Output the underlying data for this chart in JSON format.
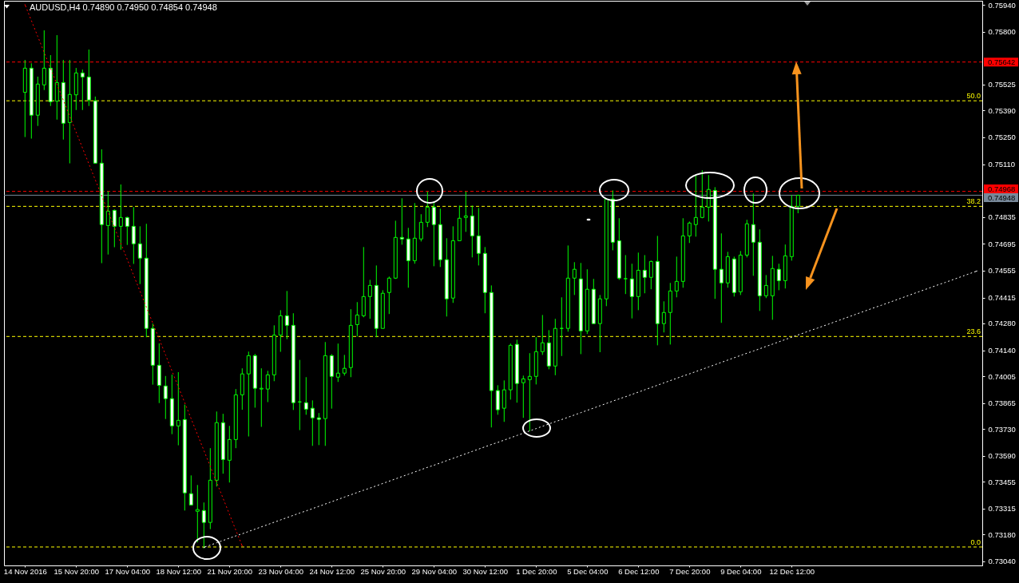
{
  "chart_data": {
    "type": "candlestick",
    "title": "AUDUSD,H4  0.74890 0.74950 0.74854 0.74948",
    "categories": [
      "14 Nov 2016",
      null,
      null,
      null,
      null,
      null,
      null,
      null,
      "15 Nov 20:00",
      null,
      null,
      null,
      null,
      null,
      null,
      null,
      "17 Nov 04:00",
      null,
      null,
      null,
      null,
      null,
      null,
      null,
      "18 Nov 12:00",
      null,
      null,
      null,
      null,
      null,
      null,
      null,
      "21 Nov 20:00",
      null,
      null,
      null,
      null,
      null,
      null,
      null,
      "23 Nov 04:00",
      null,
      null,
      null,
      null,
      null,
      null,
      null,
      "24 Nov 12:00",
      null,
      null,
      null,
      null,
      null,
      null,
      null,
      "25 Nov 20:00",
      null,
      null,
      null,
      null,
      null,
      null,
      null,
      "29 Nov 04:00",
      null,
      null,
      null,
      null,
      null,
      null,
      null,
      "30 Nov 12:00",
      null,
      null,
      null,
      null,
      null,
      null,
      null,
      "1 Dec 20:00",
      null,
      null,
      null,
      null,
      null,
      null,
      null,
      "5 Dec 04:00",
      null,
      null,
      null,
      null,
      null,
      null,
      null,
      "6 Dec 12:00",
      null,
      null,
      null,
      null,
      null,
      null,
      null,
      "7 Dec 20:00",
      null,
      null,
      null,
      null,
      null,
      null,
      null,
      "9 Dec 04:00",
      null,
      null,
      null,
      null,
      null,
      null,
      null,
      "12 Dec 12:00",
      null,
      null,
      null,
      null,
      null,
      null,
      null,
      null,
      null,
      null,
      null,
      null,
      null,
      null,
      null,
      null,
      null,
      null,
      null,
      null,
      null,
      null,
      null,
      null,
      null,
      null,
      null,
      null,
      null
    ],
    "ohlc": [
      [
        0.75484,
        0.75653,
        0.75251,
        0.7561
      ],
      [
        0.7561,
        0.75635,
        0.75243,
        0.75365
      ],
      [
        0.75365,
        0.75566,
        0.75309,
        0.75527
      ],
      [
        0.75523,
        0.75807,
        0.75496,
        0.7561
      ],
      [
        0.7561,
        0.75678,
        0.75413,
        0.75435
      ],
      [
        0.75438,
        0.75782,
        0.75342,
        0.75535
      ],
      [
        0.75535,
        0.75653,
        0.75238,
        0.75323
      ],
      [
        0.75327,
        0.75653,
        0.75114,
        0.75473
      ],
      [
        0.75471,
        0.75611,
        0.75392,
        0.75585
      ],
      [
        0.75585,
        0.75603,
        0.75392,
        0.75564
      ],
      [
        0.75564,
        0.75707,
        0.75413,
        0.75444
      ],
      [
        0.7544,
        0.75462,
        0.75115,
        0.75115
      ],
      [
        0.75115,
        0.75187,
        0.74594,
        0.74795
      ],
      [
        0.7479,
        0.74969,
        0.74639,
        0.74865
      ],
      [
        0.74869,
        0.74874,
        0.74677,
        0.74786
      ],
      [
        0.74786,
        0.75004,
        0.74664,
        0.74832
      ],
      [
        0.74832,
        0.74836,
        0.74689,
        0.74786
      ],
      [
        0.74786,
        0.74886,
        0.7459,
        0.74695
      ],
      [
        0.74695,
        0.74786,
        0.74485,
        0.7462
      ],
      [
        0.7462,
        0.74799,
        0.74208,
        0.74254
      ],
      [
        0.74254,
        0.74279,
        0.73961,
        0.74062
      ],
      [
        0.74062,
        0.74176,
        0.73865,
        0.73957
      ],
      [
        0.73954,
        0.74006,
        0.73782,
        0.73888
      ],
      [
        0.73888,
        0.74013,
        0.73703,
        0.73746
      ],
      [
        0.73746,
        0.74026,
        0.73645,
        0.73775
      ],
      [
        0.73779,
        0.73857,
        0.73305,
        0.73397
      ],
      [
        0.73393,
        0.73488,
        0.73334,
        0.73334
      ],
      [
        0.73301,
        0.73438,
        0.73139,
        0.7331
      ],
      [
        0.73305,
        0.73347,
        0.73108,
        0.73243
      ],
      [
        0.73243,
        0.7363,
        0.73208,
        0.73463
      ],
      [
        0.73463,
        0.73821,
        0.7343,
        0.73763
      ],
      [
        0.73763,
        0.73809,
        0.73497,
        0.73571
      ],
      [
        0.73567,
        0.73746,
        0.73451,
        0.73675
      ],
      [
        0.73675,
        0.73938,
        0.7363,
        0.73908
      ],
      [
        0.73908,
        0.74046,
        0.7383,
        0.74017
      ],
      [
        0.74017,
        0.74133,
        0.73691,
        0.74112
      ],
      [
        0.74112,
        0.74121,
        0.73841,
        0.73942
      ],
      [
        0.73938,
        0.74046,
        0.73741,
        0.73942
      ],
      [
        0.73938,
        0.74033,
        0.7387,
        0.74012
      ],
      [
        0.74012,
        0.7427,
        0.73979,
        0.74219
      ],
      [
        0.74219,
        0.74349,
        0.74132,
        0.7432
      ],
      [
        0.7432,
        0.74449,
        0.74198,
        0.7427
      ],
      [
        0.7427,
        0.74333,
        0.73829,
        0.73867
      ],
      [
        0.73871,
        0.7409,
        0.73724,
        0.73871
      ],
      [
        0.73867,
        0.74,
        0.73804,
        0.73833
      ],
      [
        0.73838,
        0.73879,
        0.73642,
        0.73788
      ],
      [
        0.73788,
        0.73813,
        0.73646,
        0.7378
      ],
      [
        0.73784,
        0.74183,
        0.73642,
        0.74112
      ],
      [
        0.74112,
        0.7412,
        0.73836,
        0.74004
      ],
      [
        0.74,
        0.74175,
        0.73975,
        0.74021
      ],
      [
        0.74021,
        0.74116,
        0.74008,
        0.74046
      ],
      [
        0.7405,
        0.74354,
        0.74,
        0.7427
      ],
      [
        0.74274,
        0.74391,
        0.74212,
        0.74324
      ],
      [
        0.7432,
        0.74678,
        0.74312,
        0.7442
      ],
      [
        0.7442,
        0.74507,
        0.74304,
        0.74478
      ],
      [
        0.74478,
        0.74582,
        0.74208,
        0.74254
      ],
      [
        0.74254,
        0.74453,
        0.74254,
        0.74437
      ],
      [
        0.74441,
        0.74524,
        0.74329,
        0.74516
      ],
      [
        0.74516,
        0.74815,
        0.74512,
        0.74728
      ],
      [
        0.74728,
        0.74932,
        0.7469,
        0.7472
      ],
      [
        0.7472,
        0.74778,
        0.74466,
        0.74607
      ],
      [
        0.74607,
        0.74907,
        0.74591,
        0.74724
      ],
      [
        0.7472,
        0.74849,
        0.74707,
        0.74807
      ],
      [
        0.74807,
        0.74967,
        0.74782,
        0.74886
      ],
      [
        0.74886,
        0.74911,
        0.74578,
        0.74795
      ],
      [
        0.74795,
        0.74878,
        0.74574,
        0.74612
      ],
      [
        0.74612,
        0.74724,
        0.74316,
        0.74408
      ],
      [
        0.74412,
        0.74786,
        0.74387,
        0.74711
      ],
      [
        0.74711,
        0.74894,
        0.74711,
        0.74828
      ],
      [
        0.74832,
        0.74967,
        0.74757,
        0.7484
      ],
      [
        0.7484,
        0.74894,
        0.74624,
        0.74736
      ],
      [
        0.74736,
        0.74882,
        0.74582,
        0.74645
      ],
      [
        0.74645,
        0.74678,
        0.74333,
        0.74441
      ],
      [
        0.74441,
        0.74478,
        0.73738,
        0.7393
      ],
      [
        0.7393,
        0.73958,
        0.73804,
        0.7383
      ],
      [
        0.73838,
        0.73983,
        0.73767,
        0.73934
      ],
      [
        0.73934,
        0.74175,
        0.73883,
        0.74166
      ],
      [
        0.74171,
        0.74195,
        0.73867,
        0.73967
      ],
      [
        0.73971,
        0.74008,
        0.73788,
        0.73991
      ],
      [
        0.73987,
        0.74125,
        0.73718,
        0.74004
      ],
      [
        0.74004,
        0.74208,
        0.73962,
        0.74133
      ],
      [
        0.74133,
        0.74324,
        0.74116,
        0.74179
      ],
      [
        0.74179,
        0.74245,
        0.74041,
        0.74058
      ],
      [
        0.74058,
        0.74304,
        0.7401,
        0.74254
      ],
      [
        0.74254,
        0.74416,
        0.7411,
        0.74254
      ],
      [
        0.74254,
        0.74686,
        0.74237,
        0.74516
      ],
      [
        0.74516,
        0.74599,
        0.74428,
        0.74562
      ],
      [
        0.74512,
        0.74595,
        0.7412,
        0.74241
      ],
      [
        0.74241,
        0.74562,
        0.74225,
        0.74458
      ],
      [
        0.74458,
        0.74512,
        0.74279,
        0.74279
      ],
      [
        0.74279,
        0.74428,
        0.7413,
        0.74408
      ],
      [
        0.74408,
        0.74928,
        0.7437,
        0.74928
      ],
      [
        0.74928,
        0.74973,
        0.74661,
        0.74703
      ],
      [
        0.74711,
        0.74828,
        0.74507,
        0.74516
      ],
      [
        0.74513,
        0.74636,
        0.74433,
        0.74513
      ],
      [
        0.74512,
        0.74591,
        0.74306,
        0.7442
      ],
      [
        0.7442,
        0.74649,
        0.74349,
        0.74557
      ],
      [
        0.74557,
        0.74636,
        0.74437,
        0.7452
      ],
      [
        0.7452,
        0.74607,
        0.74458,
        0.74603
      ],
      [
        0.74603,
        0.74736,
        0.74166,
        0.74279
      ],
      [
        0.74279,
        0.74395,
        0.74233,
        0.74337
      ],
      [
        0.74337,
        0.74491,
        0.7417,
        0.74449
      ],
      [
        0.74449,
        0.74628,
        0.74416,
        0.74499
      ],
      [
        0.74499,
        0.74828,
        0.74466,
        0.74736
      ],
      [
        0.74736,
        0.74811,
        0.74699,
        0.74803
      ],
      [
        0.74795,
        0.75053,
        0.74732,
        0.74832
      ],
      [
        0.74832,
        0.75078,
        0.74828,
        0.74886
      ],
      [
        0.74886,
        0.75053,
        0.74811,
        0.74978
      ],
      [
        0.74973,
        0.7499,
        0.74408,
        0.74562
      ],
      [
        0.74562,
        0.74749,
        0.74283,
        0.74491
      ],
      [
        0.74491,
        0.74653,
        0.74466,
        0.74628
      ],
      [
        0.74616,
        0.74628,
        0.7442,
        0.74441
      ],
      [
        0.74445,
        0.74657,
        0.74428,
        0.74636
      ],
      [
        0.74636,
        0.7482,
        0.74624,
        0.74799
      ],
      [
        0.74795,
        0.74957,
        0.74528,
        0.74703
      ],
      [
        0.74703,
        0.7477,
        0.74345,
        0.74424
      ],
      [
        0.74424,
        0.74532,
        0.74412,
        0.74478
      ],
      [
        0.74424,
        0.74632,
        0.74299,
        0.74566
      ],
      [
        0.74562,
        0.74591,
        0.74453,
        0.74503
      ],
      [
        0.74503,
        0.74691,
        0.74462,
        0.74632
      ],
      [
        0.74628,
        0.74949,
        0.74607,
        0.7489
      ],
      [
        0.7489,
        0.7495,
        0.74854,
        0.74948
      ],
      null,
      null,
      null,
      null,
      null,
      null,
      null,
      null,
      null,
      null,
      null,
      null,
      null,
      null,
      null,
      null,
      null,
      null,
      null,
      null,
      null,
      null,
      null,
      null,
      null,
      null,
      null,
      null
    ],
    "color": "#00ff00",
    "colors": [
      "#000000",
      "#ffffff",
      "#000000",
      "#000000",
      "#ffffff",
      "#000000",
      "#ffffff",
      "#000000",
      "#000000",
      "#ffffff",
      "#ffffff",
      "#ffffff",
      "#ffffff",
      "#000000",
      "#ffffff",
      "#000000",
      "#ffffff",
      "#ffffff",
      "#ffffff",
      "#ffffff",
      "#ffffff",
      "#ffffff",
      "#ffffff",
      "#ffffff",
      "#000000",
      "#ffffff",
      "#ffffff",
      "#000000",
      "#ffffff",
      "#000000",
      "#000000",
      "#ffffff",
      "#000000",
      "#000000",
      "#000000",
      "#000000",
      "#ffffff",
      "#000000",
      "#000000",
      "#000000",
      "#000000",
      "#ffffff",
      "#ffffff",
      "#00ff00",
      "#ffffff",
      "#ffffff",
      "#ffffff",
      "#000000",
      "#ffffff",
      "#000000",
      "#000000",
      "#000000",
      "#000000",
      "#000000",
      "#000000",
      "#ffffff",
      "#000000",
      "#000000",
      "#000000",
      "#ffffff",
      "#ffffff",
      "#000000",
      "#000000",
      "#000000",
      "#ffffff",
      "#ffffff",
      "#ffffff",
      "#000000",
      "#000000",
      "#000000",
      "#ffffff",
      "#ffffff",
      "#ffffff",
      "#ffffff",
      "#ffffff",
      "#000000",
      "#000000",
      "#ffffff",
      "#000000",
      "#000000",
      "#000000",
      "#000000",
      "#ffffff",
      "#000000",
      "#00ff00",
      "#000000",
      "#000000",
      "#ffffff",
      "#000000",
      "#ffffff",
      "#000000",
      "#000000",
      "#ffffff",
      "#ffffff",
      "#00ff00",
      "#ffffff",
      "#000000",
      "#ffffff",
      "#000000",
      "#ffffff",
      "#000000",
      "#000000",
      "#000000",
      "#000000",
      "#000000",
      "#000000",
      "#000000",
      "#000000",
      "#ffffff",
      "#ffffff",
      "#000000",
      "#ffffff",
      "#000000",
      "#000000",
      "#ffffff",
      "#ffffff",
      "#000000",
      "#000000",
      "#ffffff",
      "#000000",
      "#000000",
      "#000000",
      null,
      null,
      null,
      null,
      null,
      null,
      null,
      null,
      null,
      null,
      null,
      null,
      null,
      null,
      null,
      null,
      null,
      null,
      null,
      null,
      null,
      null,
      null,
      null,
      null,
      null,
      null,
      null
    ],
    "series": [
      {
        "type": "line",
        "color": "#ff0000",
        "line_style": "dotted",
        "values": [
          0.75941,
          0.75858,
          0.75775,
          0.75692,
          0.75609,
          0.75526,
          0.75443,
          0.7536,
          0.75277,
          0.75194,
          0.75111,
          0.75028,
          0.74946,
          0.74863,
          0.7478,
          0.74697,
          0.74614,
          0.74531,
          0.74448,
          0.74365,
          0.74282,
          0.74199,
          0.74116,
          0.74033,
          0.7395,
          0.73867,
          0.73784,
          0.73701,
          0.73618,
          0.73535,
          0.73452,
          0.73369,
          0.73286,
          0.73203,
          0.7312,
          null,
          null,
          null,
          null,
          null,
          null,
          null,
          null,
          null,
          null,
          null,
          null,
          null,
          null,
          null,
          null,
          null,
          null,
          null,
          null,
          null,
          null,
          null,
          null,
          null,
          null,
          null,
          null,
          null,
          null,
          null,
          null,
          null,
          null,
          null,
          null,
          null,
          null,
          null,
          null,
          null,
          null,
          null,
          null,
          null,
          null,
          null,
          null,
          null,
          null,
          null,
          null,
          null,
          null,
          null,
          null,
          null,
          null,
          null,
          null,
          null,
          null,
          null,
          null,
          null,
          null,
          null,
          null,
          null,
          null,
          null,
          null,
          null,
          null,
          null,
          null,
          null,
          null,
          null,
          null,
          null,
          null,
          null,
          null,
          null,
          null,
          null,
          null,
          null,
          null,
          null,
          null,
          null,
          null,
          null,
          null,
          null,
          null,
          null,
          null,
          null,
          null,
          null,
          null,
          null,
          null,
          null,
          null,
          null,
          null,
          null,
          null,
          null,
          null,
          null
        ]
      },
      {
        "type": "line",
        "color": "#ffffff",
        "line_style": "dotted",
        "values": [
          null,
          null,
          null,
          null,
          null,
          null,
          null,
          null,
          null,
          null,
          null,
          null,
          null,
          null,
          null,
          null,
          null,
          null,
          null,
          null,
          null,
          null,
          null,
          null,
          null,
          null,
          null,
          null,
          0.73113,
          0.73125,
          0.73137,
          0.73149,
          0.73161,
          0.73173,
          0.73184,
          0.73196,
          0.73208,
          0.7322,
          0.73232,
          0.73244,
          0.73256,
          0.73268,
          0.7328,
          0.73292,
          0.73303,
          0.73315,
          0.73327,
          0.73339,
          0.73351,
          0.73363,
          0.73375,
          0.73387,
          0.73399,
          0.73411,
          0.73422,
          0.73434,
          0.73446,
          0.73458,
          0.7347,
          0.73482,
          0.73494,
          0.73506,
          0.73518,
          0.7353,
          0.73541,
          0.73553,
          0.73565,
          0.73577,
          0.73589,
          0.73601,
          0.73613,
          0.73625,
          0.73637,
          0.73649,
          0.7366,
          0.73672,
          0.73684,
          0.73696,
          0.73708,
          0.7372,
          0.73732,
          0.73744,
          0.73756,
          0.73768,
          0.73779,
          0.73791,
          0.73803,
          0.73815,
          0.73827,
          0.73839,
          0.73851,
          0.73863,
          0.73875,
          0.73887,
          0.73898,
          0.7391,
          0.73922,
          0.73934,
          0.73946,
          0.73958,
          0.7397,
          0.73982,
          0.73994,
          0.74006,
          0.74017,
          0.74029,
          0.74041,
          0.74053,
          0.74065,
          0.74077,
          0.74089,
          0.74101,
          0.74113,
          0.74125,
          0.74136,
          0.74148,
          0.7416,
          0.74172,
          0.74184,
          0.74196,
          0.74208,
          0.7422,
          0.74232,
          0.74244,
          0.74255,
          0.74267,
          0.74279,
          0.74291,
          0.74303,
          0.74315,
          0.74327,
          0.74339,
          0.74351,
          0.74363,
          0.74374,
          0.74386,
          0.74398,
          0.7441,
          0.74422,
          0.74434,
          0.74446,
          0.74458,
          0.7447,
          0.74482,
          0.74493,
          0.74505,
          0.74517,
          0.74529,
          0.74541,
          0.74553
        ]
      }
    ],
    "ylim": [
      0.73019,
      0.75961
    ],
    "yticks": [
      {
        "value": 0.7594,
        "label": "0.75940"
      },
      {
        "value": 0.758,
        "label": "0.75800"
      },
      0.75525,
      {
        "value": 0.7539,
        "label": "0.75390"
      },
      {
        "value": 0.7525,
        "label": "0.75250"
      },
      {
        "value": 0.7511,
        "label": "0.75110"
      },
      0.74835,
      0.74695,
      0.74555,
      0.74415,
      {
        "value": 0.7428,
        "label": "0.74280"
      },
      {
        "value": 0.7414,
        "label": "0.74140"
      },
      0.74005,
      0.73865,
      {
        "value": 0.7373,
        "label": "0.73730"
      },
      {
        "value": 0.7359,
        "label": "0.73590"
      },
      0.73455,
      0.73315,
      {
        "value": 0.7318,
        "label": "0.73180"
      },
      {
        "value": 0.7304,
        "label": "0.73040"
      }
    ],
    "ref_lines": [
      {
        "axis": "y",
        "value": 0.7544,
        "color": "#ffff00",
        "line_style": "dashed"
      },
      {
        "axis": "y",
        "value": 0.7489,
        "color": "#ffff00",
        "line_style": "dashed"
      },
      {
        "axis": "y",
        "value": 0.74212,
        "color": "#ffff00",
        "line_style": "dashed"
      },
      {
        "axis": "y",
        "value": 0.73115,
        "color": "#ffff00",
        "line_style": "dashed"
      },
      {
        "axis": "y",
        "value": 0.75642,
        "label": "0.75642",
        "color": "#ff0000",
        "line_style": "dashed"
      },
      {
        "axis": "y",
        "value": 0.74968,
        "label": "0.74968",
        "color": "#ff0000",
        "line_style": "dashed"
      },
      {
        "axis": "y",
        "value": 0.74948,
        "label": "0.74948",
        "color": "#778899",
        "line_style": "solid"
      }
    ],
    "annotations": [
      {
        "text": "50.0",
        "y": 0.7544
      },
      {
        "text": "38.2",
        "y": 0.7489
      },
      {
        "text": "23.6",
        "y": 0.74212
      },
      {
        "text": "0.0",
        "y": 0.73115
      }
    ]
  }
}
